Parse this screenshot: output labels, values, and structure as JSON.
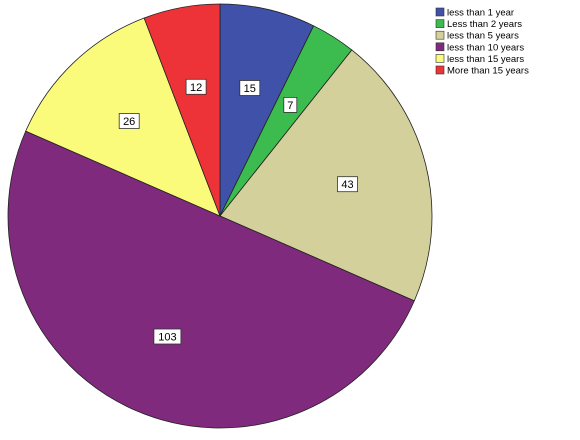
{
  "chart_data": {
    "type": "pie",
    "start_angle_deg": 0,
    "direction": "clockwise",
    "legend_position": "top-right",
    "slices": [
      {
        "label": "less than 1 year",
        "value": 15,
        "color": "#3F51A8"
      },
      {
        "label": "Less than 2 years",
        "value": 7,
        "color": "#3CBC4E"
      },
      {
        "label": "less than 5 years",
        "value": 43,
        "color": "#D4D09C"
      },
      {
        "label": "less than 10 years",
        "value": 103,
        "color": "#7F2A7D"
      },
      {
        "label": "less than 15 years",
        "value": 26,
        "color": "#FBFB7B"
      },
      {
        "label": "More than 15 years",
        "value": 12,
        "color": "#EE3338"
      }
    ]
  }
}
